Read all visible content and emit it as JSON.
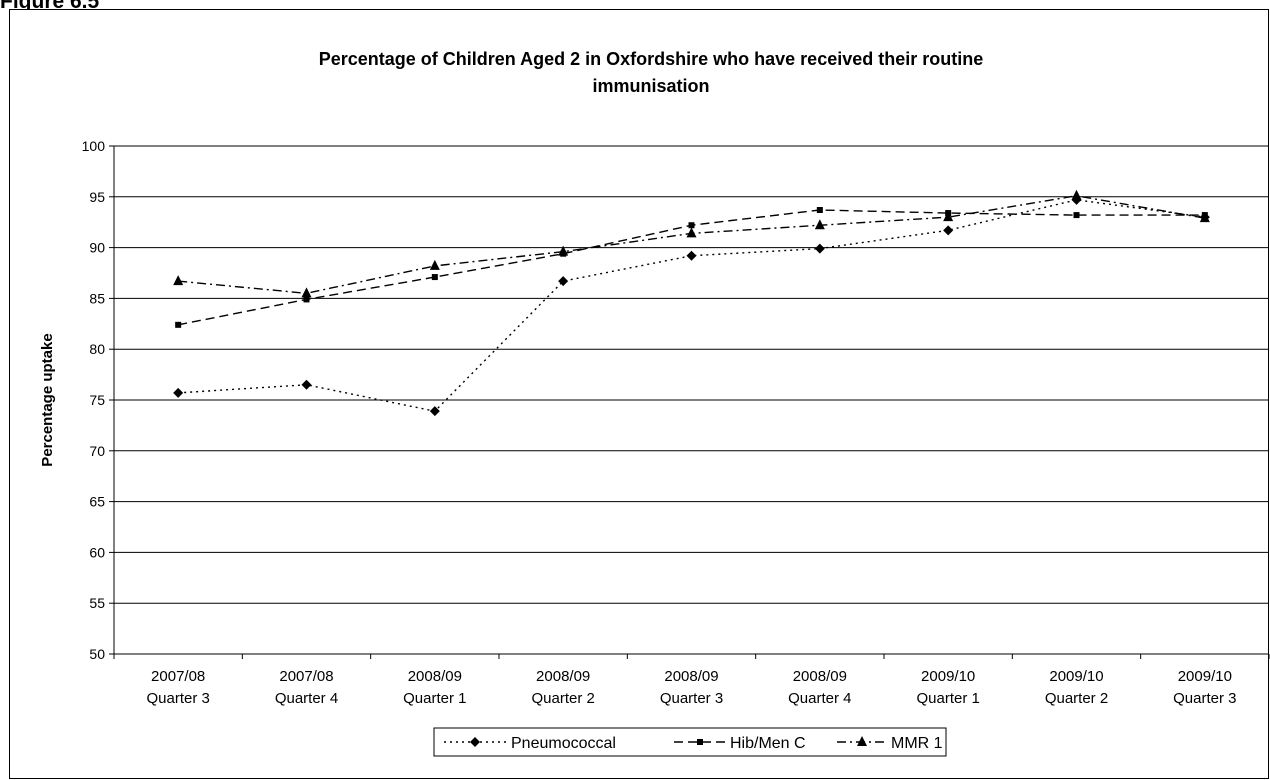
{
  "figure_label": "Figure 6.5",
  "chart_data": {
    "type": "line",
    "title_line1": "Percentage of Children Aged 2 in Oxfordshire who have received their routine",
    "title_line2": "immunisation",
    "xlabel": "",
    "ylabel": "Percentage uptake",
    "ylim": [
      50,
      100
    ],
    "ytick_step": 5,
    "grid": "horizontal",
    "legend_position": "bottom-center",
    "categories": [
      [
        "2007/08",
        "Quarter 3"
      ],
      [
        "2007/08",
        "Quarter 4"
      ],
      [
        "2008/09",
        "Quarter 1"
      ],
      [
        "2008/09",
        "Quarter 2"
      ],
      [
        "2008/09",
        "Quarter 3"
      ],
      [
        "2008/09",
        "Quarter 4"
      ],
      [
        "2009/10",
        "Quarter 1"
      ],
      [
        "2009/10",
        "Quarter 2"
      ],
      [
        "2009/10",
        "Quarter 3"
      ]
    ],
    "series": [
      {
        "name": "Pneumococcal",
        "marker": "diamond",
        "dash": "dotted",
        "values": [
          75.7,
          76.5,
          73.9,
          86.7,
          89.2,
          89.9,
          91.7,
          94.7,
          93.0
        ]
      },
      {
        "name": "Hib/Men C",
        "marker": "square",
        "dash": "dashed",
        "values": [
          82.4,
          84.9,
          87.1,
          89.4,
          92.2,
          93.7,
          93.4,
          93.2,
          93.2
        ]
      },
      {
        "name": "MMR 1",
        "marker": "triangle",
        "dash": "dashdot",
        "values": [
          86.7,
          85.5,
          88.2,
          89.6,
          91.4,
          92.2,
          93.0,
          95.1,
          92.9
        ]
      }
    ]
  }
}
